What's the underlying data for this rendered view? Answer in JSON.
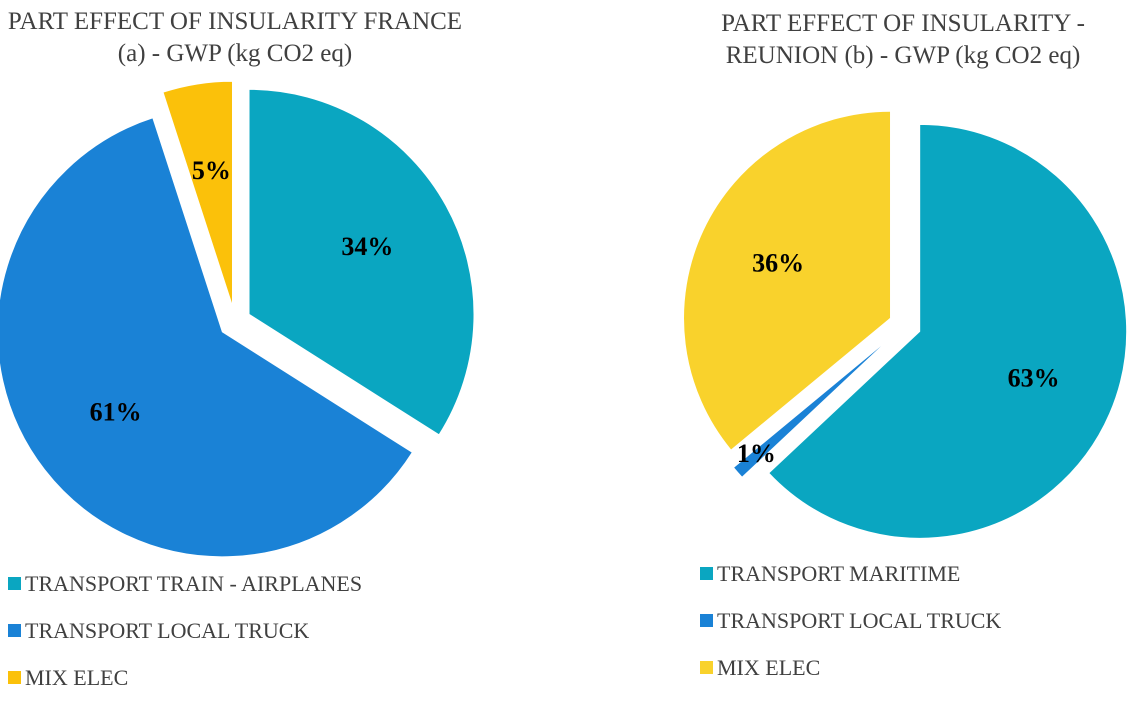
{
  "chart_data": [
    {
      "type": "pie",
      "title": "PART EFFECT OF INSULARITY FRANCE (a) - GWP (kg CO2 eq)",
      "categories": [
        "TRANSPORT TRAIN - AIRPLANES",
        "TRANSPORT LOCAL TRUCK",
        "MIX ELEC"
      ],
      "values": [
        34,
        61,
        5
      ],
      "value_labels": [
        "34%",
        "61%",
        "5%"
      ],
      "colors": [
        "#0aa6c1",
        "#1a82d6",
        "#fbc10a"
      ]
    },
    {
      "type": "pie",
      "title": "PART EFFECT OF INSULARITY - REUNION (b) - GWP (kg CO2 eq)",
      "categories": [
        "TRANSPORT MARITIME",
        "TRANSPORT LOCAL TRUCK",
        "MIX ELEC"
      ],
      "values": [
        63,
        1,
        36
      ],
      "value_labels": [
        "63%",
        "1%",
        "36%"
      ],
      "colors": [
        "#0aa6c1",
        "#1a82d6",
        "#f9d22c"
      ]
    }
  ]
}
